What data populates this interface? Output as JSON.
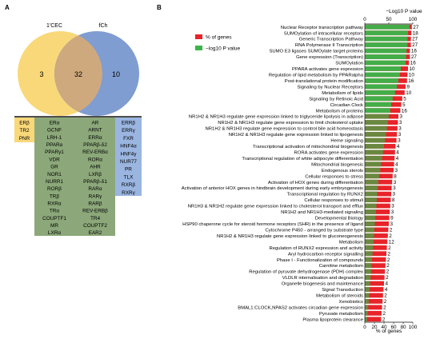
{
  "panels": {
    "a": "A",
    "b": "B"
  },
  "venn": {
    "left_label": "1'CEC",
    "right_label": "fCh",
    "left_only": "3",
    "overlap": "32",
    "right_only": "10",
    "left_color": "#f9d87a",
    "right_color": "#7f9dd0",
    "overlap_color": "#cfa97e"
  },
  "genes": {
    "yellow": [
      "ERβ",
      "TR2",
      "PNR"
    ],
    "green_col1": [
      "ERα",
      "GCNF",
      "LRH-1",
      "PPARα",
      "PPARγ1",
      "VDR",
      "GR",
      "NOR1",
      "NURR1",
      "RORβ",
      "TRβ",
      "RXRα",
      "TRα",
      "COUPTF1",
      "MR",
      "LXRα"
    ],
    "green_col2": [
      "AR",
      "ARNT",
      "ERRα",
      "PPARβ-δ2",
      "REV-ERBα",
      "RORα",
      "AHR",
      "LXRβ",
      "PPARβ-δ1",
      "RARα",
      "RARγ",
      "RARβ",
      "REV-ERBβ",
      "TR4",
      "COUPTF2",
      "EAR2"
    ],
    "blue": [
      "ERRβ",
      "ERRγ",
      "FXR",
      "HNF4α",
      "HNF4γ",
      "NUR77",
      "PR",
      "TLX",
      "RXRβ",
      "RXRγ"
    ],
    "colors": {
      "yellow": "#f9d87a",
      "green": "#8ca87a",
      "blue": "#9ab5e0"
    }
  },
  "chart_data": {
    "type": "bar",
    "x_label": "% of genes",
    "x_ticks": [
      "0",
      "20",
      "40",
      "60",
      "80",
      "100"
    ],
    "x_range": [
      0,
      100
    ],
    "top_axis_label": "−Log10 P value",
    "top_ticks": [
      "0",
      "50",
      "100"
    ],
    "legend": [
      {
        "label": "% of genes",
        "color": "#e8232a"
      },
      {
        "label": "−log10 P value",
        "color": "#3ab54a"
      }
    ],
    "legend_placement": "top-left",
    "bar_colors": {
      "pvalue": "#3ab54a",
      "pct": "#e8232a",
      "overlap": "#8a6a3a"
    },
    "categories": [
      "Nuclear Receptor transcription pathway",
      "SUMOylation of intracellular receptors",
      "Generic Transcription Pathway",
      "RNA Polymerase II Transcription",
      "SUMO E3 ligases SUMOylate target proteins",
      "Gene expression (Transcription)",
      "SUMOylation",
      "PPARA activates gene expression",
      "Regulation of lipid metabolism by PPARalpha",
      "Post-translational protein modification",
      "Signaling by Nuclear Receptors",
      "Metabolism of lipids",
      "Signaling by Retinoic Acid",
      "Circadian Clock",
      "Metabolism of proteins",
      "NR1H2 & NR1H3 regulate gene expression linked to triglyceride lipolysis in adipose",
      "NR1H2 & NR1H3 regulate gene expression to limit cholesterol uptake",
      "NR1H2 & NR1H3 regulate gene expression to control bile acid homeostasis",
      "NR1H2 & NR1H3 regulate gene expression linked to lipogenesis",
      "Heme signaling",
      "Transcriptional activation of mitochondrial biogenesis",
      "RORA activates gene expression",
      "Transcriptional regulation of white adipocyte differentiation",
      "Mitochondrial biogenesis",
      "Endogenous sterols",
      "Cellular responses to stress",
      "Activation of HOX genes during differentiation",
      "Activation of anterior HOX genes in hindbrain development during early embryogenesis",
      "Transcriptional regulation by RUNX2",
      "Cellular responses to stimuli",
      "NR1H3 & NR1H2 regulate gene expression linked to cholesterol transport and efflux",
      "NR1H2 and NR1H3-mediated signaling",
      "Developmental Biology",
      "HSP90 chaperone cycle for steroid hormone receptors (SHR) in the presence of ligand",
      "Cytochrome P450 - arranged by substrate type",
      "NR1H2 & NR1H3 regulate gene expression linked to gluconeogenesis",
      "Metabolism",
      "Regulation of RUNX2 expression and activity",
      "Aryl hydrocarbon receptor signalling",
      "Phase I - Functionalization of compounds",
      "Carnitine metabolism",
      "Regulation of pyruvate dehydrogenase (PDH) complex",
      "VLDLR internalisation and degradation",
      "Organelle biogenesis and maintenance",
      "Signal Transduction",
      "Metabolism of steroids",
      "Xenobiotics",
      "BMAL1:CLOCK,NPAS2 activates circadian gene expression",
      "Pyruvate metabolism",
      "Plasma lipoprotein clearance"
    ],
    "gene_counts": [
      "27",
      "18",
      "27",
      "27",
      "16",
      "27",
      "16",
      "10",
      "10",
      "16",
      "9",
      "10",
      "5",
      "5",
      "16",
      "3",
      "3",
      "3",
      "3",
      "3",
      "4",
      "4",
      "4",
      "4",
      "3",
      "8",
      "3",
      "3",
      "3",
      "8",
      "3",
      "3",
      "9",
      "3",
      "2",
      "2",
      "12",
      "2",
      "2",
      "2",
      "2",
      "2",
      "2",
      "4",
      "4",
      "2",
      "2",
      "2",
      "2",
      "2"
    ],
    "pct_values": [
      98,
      97,
      96,
      96,
      94,
      94,
      92,
      90,
      89,
      88,
      85,
      83,
      78,
      76,
      74,
      70,
      69,
      68,
      67,
      66,
      64,
      63,
      62,
      61,
      60,
      58,
      57,
      56,
      55,
      54,
      53,
      52,
      51,
      50,
      49,
      48,
      47,
      46,
      45,
      44,
      43,
      42,
      41,
      40,
      39,
      38,
      37,
      36,
      35,
      34
    ],
    "pvalue_values": [
      93,
      90,
      89,
      89,
      87,
      86,
      85,
      75,
      73,
      70,
      67,
      63,
      58,
      55,
      53,
      50,
      48,
      46,
      44,
      42,
      40,
      38,
      36,
      34,
      32,
      30,
      28,
      27,
      26,
      25,
      24,
      23,
      22,
      21,
      20,
      19,
      18,
      17,
      16,
      15,
      14,
      13,
      12,
      11,
      10,
      9,
      8,
      7,
      6,
      5
    ]
  }
}
